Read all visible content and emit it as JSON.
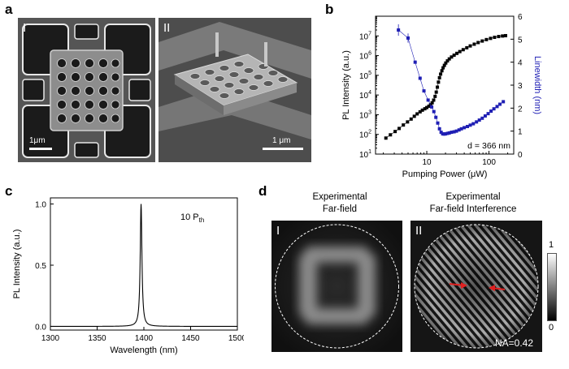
{
  "panels": {
    "a": {
      "label": "a",
      "left_label": "I",
      "right_label": "II",
      "left_scale": "1μm",
      "right_scale": "1 μm"
    },
    "b": {
      "label": "b",
      "annotation": "d = 366 nm"
    },
    "c": {
      "label": "c",
      "annotation_main": "10 P",
      "annotation_sub": "th"
    },
    "d": {
      "label": "d",
      "left_title_1": "Experimental",
      "left_title_2": "Far-field",
      "right_title_1": "Experimental",
      "right_title_2": "Far-field Interference",
      "left_label": "I",
      "right_label": "II",
      "na_text": "NA=0.42",
      "colorbar_max": "1",
      "colorbar_min": "0"
    }
  },
  "chart_data": [
    {
      "type": "scatter",
      "panel": "b",
      "xlabel": "Pumping Power (μW)",
      "ylabel": "PL Intensity (a.u.)",
      "y2label": "Linewidth (nm)",
      "xscale": "log",
      "yscale": "log",
      "xlim": [
        1.5,
        250
      ],
      "ylim": [
        10,
        100000000
      ],
      "y2lim": [
        0,
        6
      ],
      "x_ticks": [
        "10",
        "100"
      ],
      "y_ticks": [
        "10^1",
        "10^2",
        "10^3",
        "10^4",
        "10^5",
        "10^6",
        "10^7"
      ],
      "y2_ticks": [
        "0",
        "1",
        "2",
        "3",
        "4",
        "5",
        "6"
      ],
      "series": [
        {
          "axis": "left",
          "color": "#000000",
          "x": [
            2.2,
            2.6,
            3.1,
            3.6,
            4.2,
            4.9,
            5.6,
            6.3,
            7.0,
            7.8,
            8.5,
            9.3,
            10.0,
            10.8,
            11.5,
            12.2,
            12.9,
            13.6,
            14.2,
            14.8,
            15.4,
            16.0,
            16.7,
            17.5,
            18.3,
            19.2,
            20.2,
            21.5,
            23.0,
            25.0,
            27.5,
            30.5,
            34.0,
            38.5,
            44.0,
            50.0,
            58.0,
            67.0,
            78.0,
            91.0,
            106.0,
            123.0,
            143.0,
            165.0,
            185.0
          ],
          "y": [
            65,
            95,
            140,
            200,
            300,
            430,
            600,
            830,
            1100,
            1400,
            1700,
            2000,
            2300,
            2700,
            3200,
            4000,
            5500,
            8500,
            14000,
            25000,
            45000,
            75000,
            115000,
            170000,
            240000,
            320000,
            420000,
            540000,
            680000,
            850000,
            1050000,
            1300000,
            1600000,
            2000000,
            2500000,
            3100000,
            3800000,
            4600000,
            5500000,
            6500000,
            7500000,
            8500000,
            9300000,
            9900000,
            10300000
          ]
        },
        {
          "axis": "right",
          "color": "#1f1fb4",
          "x": [
            3.5,
            5.0,
            6.5,
            7.8,
            9.0,
            10.5,
            12.0,
            13.0,
            14.0,
            15.0,
            16.0,
            17.0,
            18.0,
            19.0,
            20.0,
            21.5,
            23.0,
            25.0,
            27.5,
            30.0,
            33.0,
            36.0,
            40.0,
            45.0,
            50.0,
            56.0,
            63.0,
            70.0,
            78.0,
            87.0,
            97.0,
            108.0,
            120.0,
            135.0,
            150.0,
            170.0
          ],
          "y": [
            5.4,
            5.05,
            4.0,
            3.3,
            2.75,
            2.35,
            2.05,
            1.85,
            1.6,
            1.35,
            1.1,
            0.95,
            0.88,
            0.87,
            0.88,
            0.9,
            0.92,
            0.95,
            0.97,
            1.0,
            1.05,
            1.1,
            1.15,
            1.2,
            1.26,
            1.32,
            1.4,
            1.48,
            1.56,
            1.66,
            1.76,
            1.87,
            1.97,
            2.07,
            2.17,
            2.28
          ]
        }
      ]
    },
    {
      "type": "line",
      "panel": "c",
      "xlabel": "Wavelength (nm)",
      "ylabel": "PL Intensity (a.u.)",
      "xlim": [
        1300,
        1500
      ],
      "ylim": [
        -0.03,
        1.05
      ],
      "x_ticks": [
        "1300",
        "1350",
        "1400",
        "1450",
        "1500"
      ],
      "y_ticks": [
        "0.0",
        "0.5",
        "1.0"
      ],
      "peak_center": 1397,
      "peak_fwhm": 2.2,
      "peak_height": 1.0
    }
  ]
}
